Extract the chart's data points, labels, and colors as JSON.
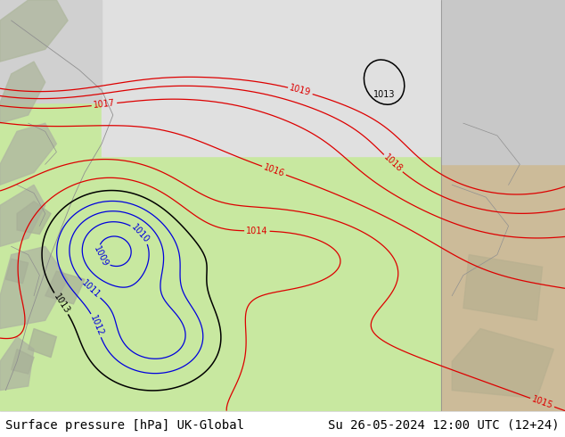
{
  "title_left": "Surface pressure [hPa] UK-Global",
  "title_right": "Su 26-05-2024 12:00 UTC (12+24)",
  "bg_green": "#c8e8a0",
  "bg_gray_sea": "#d8d8d8",
  "bg_right_land": "#ccbb99",
  "bg_right_sea": "#b8c8b8",
  "contour_blue": "#0000dd",
  "contour_red": "#dd0000",
  "contour_black": "#000000",
  "label_fontsize": 7,
  "title_fontsize": 10
}
